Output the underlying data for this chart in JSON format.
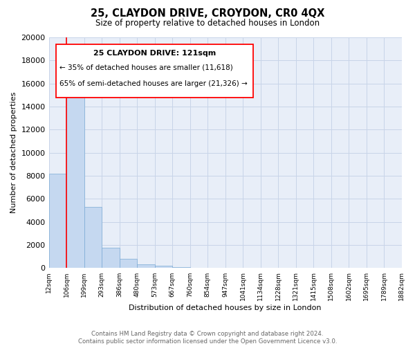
{
  "title": "25, CLAYDON DRIVE, CROYDON, CR0 4QX",
  "subtitle": "Size of property relative to detached houses in London",
  "bar_heights": [
    8200,
    16700,
    5300,
    1750,
    800,
    300,
    200,
    100,
    0,
    0,
    0,
    0,
    0,
    0,
    0,
    0,
    0,
    0,
    0,
    0
  ],
  "bar_color": "#c5d8f0",
  "bar_edge_color": "#7baad4",
  "x_labels": [
    "12sqm",
    "106sqm",
    "199sqm",
    "293sqm",
    "386sqm",
    "480sqm",
    "573sqm",
    "667sqm",
    "760sqm",
    "854sqm",
    "947sqm",
    "1041sqm",
    "1134sqm",
    "1228sqm",
    "1321sqm",
    "1415sqm",
    "1508sqm",
    "1602sqm",
    "1695sqm",
    "1789sqm",
    "1882sqm"
  ],
  "ylabel": "Number of detached properties",
  "xlabel": "Distribution of detached houses by size in London",
  "ylim": [
    0,
    20000
  ],
  "yticks": [
    0,
    2000,
    4000,
    6000,
    8000,
    10000,
    12000,
    14000,
    16000,
    18000,
    20000
  ],
  "red_line_x": 0.5,
  "property_label": "25 CLAYDON DRIVE: 121sqm",
  "annotation_line1": "← 35% of detached houses are smaller (11,618)",
  "annotation_line2": "65% of semi-detached houses are larger (21,326) →",
  "footer_line1": "Contains HM Land Registry data © Crown copyright and database right 2024.",
  "footer_line2": "Contains public sector information licensed under the Open Government Licence v3.0.",
  "grid_color": "#c8d4e8",
  "background_color": "#e8eef8"
}
